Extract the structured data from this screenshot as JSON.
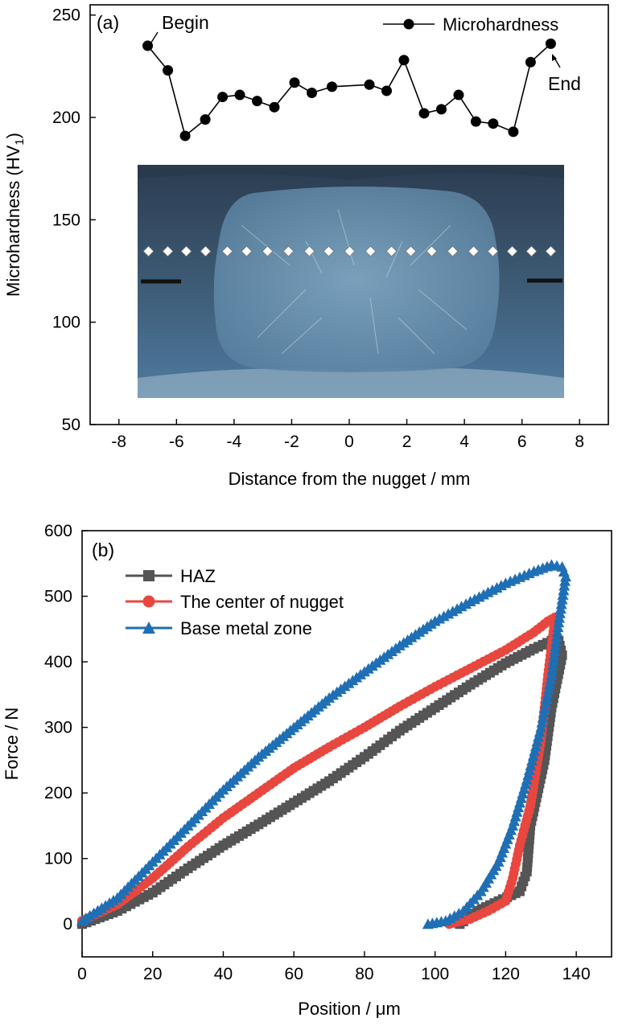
{
  "chart_data": [
    {
      "type": "line",
      "panel_label": "(a)",
      "xlabel": "Distance from the nugget / mm",
      "ylabel": "Microhardness (HV",
      "ylabel_sub": "1",
      "ylabel_close": ")",
      "xlim": [
        -9,
        9
      ],
      "ylim": [
        50,
        255
      ],
      "xticks": [
        -8,
        -6,
        -4,
        -2,
        0,
        2,
        4,
        6,
        8
      ],
      "yticks": [
        50,
        100,
        150,
        200,
        250
      ],
      "legend": {
        "position": "top-right",
        "entries": [
          "Microhardness"
        ]
      },
      "annotations": [
        {
          "text": "Begin",
          "x": -7.0,
          "y": 235
        },
        {
          "text": "End",
          "x": 7.0,
          "y": 236
        }
      ],
      "inset_image": "weld nugget cross-section micrograph with indentation markers",
      "series": [
        {
          "name": "Microhardness",
          "color": "#000000",
          "marker": "circle",
          "x": [
            -7.0,
            -6.3,
            -5.7,
            -5.0,
            -4.4,
            -3.8,
            -3.2,
            -2.6,
            -1.9,
            -1.3,
            -0.6,
            0.7,
            1.3,
            1.9,
            2.6,
            3.2,
            3.8,
            4.4,
            5.0,
            5.7,
            6.3,
            7.0
          ],
          "y": [
            235,
            223,
            191,
            199,
            210,
            211,
            208,
            205,
            217,
            212,
            215,
            216,
            213,
            228,
            202,
            204,
            211,
            198,
            197,
            193,
            227,
            236
          ]
        }
      ]
    },
    {
      "type": "line",
      "panel_label": "(b)",
      "xlabel": "Position / μm",
      "ylabel": "Force / N",
      "xlim": [
        0,
        150
      ],
      "ylim": [
        -50,
        600
      ],
      "xticks": [
        0,
        20,
        40,
        60,
        80,
        100,
        120,
        140
      ],
      "yticks": [
        0,
        100,
        200,
        300,
        400,
        500,
        600
      ],
      "legend": {
        "position": "top-left",
        "entries": [
          "HAZ",
          "The center of nugget",
          "Base metal zone"
        ]
      },
      "series": [
        {
          "name": "HAZ",
          "color": "#555555",
          "marker": "square",
          "x": [
            0,
            10,
            20,
            30,
            40,
            50,
            60,
            70,
            80,
            90,
            100,
            110,
            120,
            128,
            133,
            135,
            136,
            133,
            131,
            129,
            127,
            126,
            124,
            118,
            112,
            107
          ],
          "y": [
            0,
            20,
            48,
            85,
            120,
            152,
            185,
            218,
            255,
            295,
            330,
            365,
            398,
            420,
            432,
            432,
            410,
            330,
            250,
            200,
            150,
            80,
            50,
            35,
            20,
            0
          ]
        },
        {
          "name": "The center of nugget",
          "color": "#e8473f",
          "marker": "circle",
          "x": [
            0,
            10,
            20,
            30,
            40,
            50,
            60,
            70,
            80,
            90,
            100,
            110,
            120,
            128,
            132,
            134,
            132,
            130,
            127,
            124,
            122,
            120,
            115,
            110,
            104
          ],
          "y": [
            5,
            30,
            70,
            118,
            162,
            200,
            238,
            270,
            300,
            332,
            362,
            390,
            418,
            445,
            462,
            468,
            380,
            280,
            180,
            120,
            70,
            35,
            20,
            8,
            0
          ]
        },
        {
          "name": "Base metal zone",
          "color": "#1f6fb5",
          "marker": "triangle",
          "x": [
            0,
            10,
            20,
            30,
            40,
            50,
            60,
            70,
            80,
            90,
            100,
            110,
            120,
            128,
            133,
            136,
            137,
            135,
            133,
            130,
            126,
            122,
            118,
            113,
            108,
            103,
            98
          ],
          "y": [
            5,
            40,
            95,
            150,
            205,
            255,
            300,
            345,
            385,
            425,
            462,
            492,
            520,
            538,
            548,
            545,
            530,
            460,
            380,
            300,
            220,
            150,
            95,
            50,
            20,
            5,
            0
          ]
        }
      ]
    }
  ]
}
